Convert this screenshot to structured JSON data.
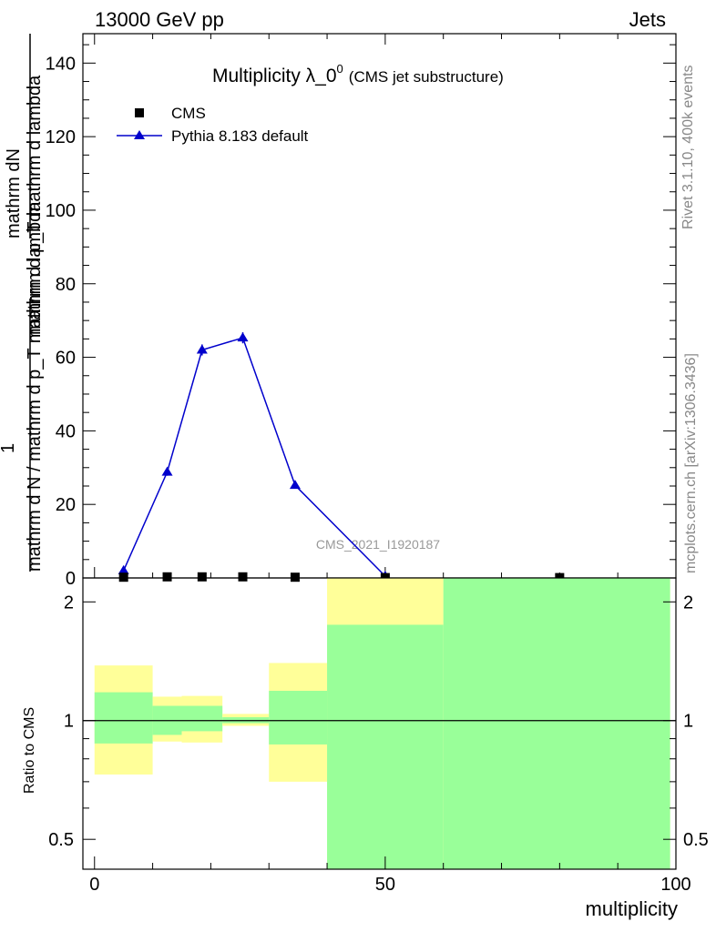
{
  "header": {
    "left": "13000 GeV pp",
    "right": "Jets"
  },
  "side_labels": {
    "version": "Rivet 3.1.10,  400k events",
    "source": "mcplots.cern.ch [arXiv:1306.3436]"
  },
  "chart_data": [
    {
      "type": "line",
      "title_main": "Multiplicity λ_0",
      "title_sup": "0",
      "title_suffix": "(CMS jet substructure)",
      "ylabel_numerator": "mathrm dN",
      "ylabel_line1": "mathrm d p_T mathrm d lambda",
      "ylabel_one": "1",
      "ylabel_denominator": "mathrm d N / mathrm d p_T mathrm d lambda",
      "xlim": [
        -2,
        100
      ],
      "ylim": [
        0,
        148
      ],
      "yticks": [
        0,
        20,
        40,
        60,
        80,
        100,
        120,
        140
      ],
      "ytick_labels": [
        "0",
        "20",
        "40",
        "60",
        "80",
        "100",
        "120",
        "140"
      ],
      "watermark": "CMS_2021_I1920187",
      "legend": {
        "placement": "top-left"
      },
      "series": [
        {
          "name": "CMS",
          "marker": "square",
          "color": "#000000",
          "x": [
            5,
            12.5,
            18.5,
            25.5,
            34.5,
            50,
            80
          ],
          "y": [
            0.2,
            0.3,
            0.3,
            0.3,
            0.2,
            0.1,
            0.1
          ]
        },
        {
          "name": "Pythia 8.183 default",
          "marker": "triangle",
          "color": "#0000cc",
          "x": [
            5,
            12.5,
            18.5,
            25.5,
            34.5,
            50
          ],
          "y": [
            2.0,
            28.8,
            62.0,
            65.3,
            25.2,
            0.5
          ],
          "yerr": [
            0.5,
            1.0,
            1.5,
            1.5,
            0.8,
            0.3
          ]
        }
      ]
    },
    {
      "type": "area",
      "ylabel": "Ratio to CMS",
      "xlabel": "multiplicity",
      "xlim": [
        -2,
        100
      ],
      "ylim": [
        0.42,
        2.3
      ],
      "xticks": [
        0,
        50,
        100
      ],
      "xtick_labels": [
        "0",
        "50",
        "100"
      ],
      "yticks": [
        0.5,
        1,
        2
      ],
      "ytick_labels": [
        "0.5",
        "1",
        "2"
      ],
      "reference_line": 1,
      "bands": [
        {
          "x0": 0,
          "x1": 10,
          "yellow": [
            0.73,
            1.38
          ],
          "green": [
            0.875,
            1.18
          ]
        },
        {
          "x0": 10,
          "x1": 15,
          "yellow": [
            0.885,
            1.15
          ],
          "green": [
            0.92,
            1.09
          ]
        },
        {
          "x0": 15,
          "x1": 22,
          "yellow": [
            0.88,
            1.155
          ],
          "green": [
            0.94,
            1.09
          ]
        },
        {
          "x0": 22,
          "x1": 30,
          "yellow": [
            0.97,
            1.04
          ],
          "green": [
            0.985,
            1.02
          ]
        },
        {
          "x0": 30,
          "x1": 40,
          "yellow": [
            0.7,
            1.4
          ],
          "green": [
            0.87,
            1.19
          ]
        },
        {
          "x0": 40,
          "x1": 60,
          "yellow": [
            0.42,
            2.3
          ],
          "green": [
            0.42,
            1.75
          ]
        },
        {
          "x0": 60,
          "x1": 99,
          "yellow": [
            0.42,
            2.3
          ],
          "green": [
            0.42,
            2.3
          ]
        }
      ],
      "colors": {
        "yellow": "#ffff99",
        "green": "#99ff99"
      }
    }
  ]
}
